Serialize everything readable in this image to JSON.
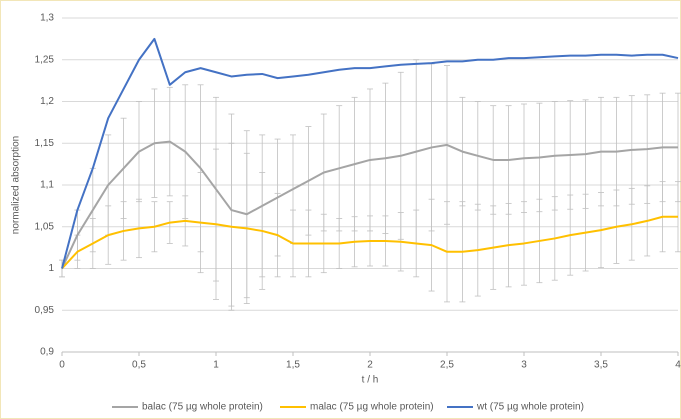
{
  "chart_data": {
    "type": "line",
    "xlabel": "t / h",
    "ylabel": "normalized absorption",
    "x": [
      0,
      0.1,
      0.2,
      0.3,
      0.4,
      0.5,
      0.6,
      0.7,
      0.8,
      0.9,
      1,
      1.1,
      1.2,
      1.3,
      1.4,
      1.5,
      1.6,
      1.7,
      1.8,
      1.9,
      2,
      2.1,
      2.2,
      2.3,
      2.4,
      2.5,
      2.6,
      2.7,
      2.8,
      2.9,
      3,
      3.1,
      3.2,
      3.3,
      3.4,
      3.5,
      3.6,
      3.7,
      3.8,
      3.9,
      4
    ],
    "series": [
      {
        "name": "balac (75 µg whole protein)",
        "color": "#a5a5a5",
        "error_color": "#c0c0c0",
        "values": [
          1.0,
          1.04,
          1.07,
          1.1,
          1.12,
          1.14,
          1.15,
          1.152,
          1.14,
          1.12,
          1.095,
          1.07,
          1.065,
          1.075,
          1.085,
          1.095,
          1.105,
          1.115,
          1.12,
          1.125,
          1.13,
          1.132,
          1.135,
          1.14,
          1.145,
          1.148,
          1.14,
          1.135,
          1.13,
          1.13,
          1.132,
          1.133,
          1.135,
          1.136,
          1.137,
          1.14,
          1.14,
          1.142,
          1.143,
          1.145,
          1.145
        ],
        "errors": [
          0.01,
          0.03,
          0.05,
          0.06,
          0.06,
          0.06,
          0.065,
          0.065,
          0.08,
          0.1,
          0.11,
          0.115,
          0.1,
          0.085,
          0.07,
          0.065,
          0.065,
          0.07,
          0.075,
          0.08,
          0.085,
          0.09,
          0.1,
          0.11,
          0.1,
          0.095,
          0.065,
          0.065,
          0.065,
          0.065,
          0.065,
          0.065,
          0.065,
          0.065,
          0.065,
          0.065,
          0.065,
          0.065,
          0.065,
          0.065,
          0.065
        ]
      },
      {
        "name": "malac (75 µg whole protein)",
        "color": "#ffc000",
        "error_color": "#c0c0c0",
        "values": [
          1.0,
          1.02,
          1.03,
          1.04,
          1.045,
          1.048,
          1.05,
          1.055,
          1.057,
          1.055,
          1.053,
          1.05,
          1.048,
          1.045,
          1.04,
          1.03,
          1.03,
          1.03,
          1.03,
          1.032,
          1.033,
          1.033,
          1.032,
          1.03,
          1.028,
          1.02,
          1.02,
          1.022,
          1.025,
          1.028,
          1.03,
          1.033,
          1.036,
          1.04,
          1.043,
          1.046,
          1.05,
          1.053,
          1.057,
          1.062,
          1.062
        ],
        "errors": [
          0.01,
          0.02,
          0.03,
          0.035,
          0.035,
          0.035,
          0.03,
          0.025,
          0.03,
          0.06,
          0.09,
          0.1,
          0.09,
          0.07,
          0.05,
          0.04,
          0.04,
          0.035,
          0.03,
          0.03,
          0.03,
          0.03,
          0.035,
          0.04,
          0.055,
          0.06,
          0.06,
          0.055,
          0.05,
          0.05,
          0.05,
          0.05,
          0.05,
          0.048,
          0.046,
          0.045,
          0.044,
          0.043,
          0.042,
          0.042,
          0.042
        ]
      },
      {
        "name": "wt (75 µg whole protein)",
        "color": "#4472c4",
        "values": [
          1.0,
          1.07,
          1.12,
          1.18,
          1.215,
          1.25,
          1.275,
          1.22,
          1.235,
          1.24,
          1.235,
          1.23,
          1.232,
          1.233,
          1.228,
          1.23,
          1.232,
          1.235,
          1.238,
          1.24,
          1.24,
          1.242,
          1.244,
          1.245,
          1.246,
          1.248,
          1.248,
          1.25,
          1.25,
          1.252,
          1.252,
          1.253,
          1.254,
          1.255,
          1.255,
          1.256,
          1.256,
          1.255,
          1.256,
          1.256,
          1.252
        ]
      }
    ],
    "xlim": [
      0,
      4
    ],
    "ylim": [
      0.9,
      1.3
    ],
    "xticks": [
      0,
      {
        "value": 0.5,
        "label": "0,5"
      },
      1,
      {
        "value": 1.5,
        "label": "1,5"
      },
      2,
      {
        "value": 2.5,
        "label": "2,5"
      },
      3,
      {
        "value": 3.5,
        "label": "3,5"
      },
      4
    ],
    "yticks": [
      {
        "value": 0.9,
        "label": "0,9"
      },
      {
        "value": 0.95,
        "label": "0,95"
      },
      1,
      {
        "value": 1.05,
        "label": "1,05"
      },
      {
        "value": 1.1,
        "label": "1,1"
      },
      {
        "value": 1.15,
        "label": "1,15"
      },
      {
        "value": 1.2,
        "label": "1,2"
      },
      {
        "value": 1.25,
        "label": "1,25"
      },
      {
        "value": 1.3,
        "label": "1,3"
      }
    ],
    "grid": true,
    "legend": "bottom"
  }
}
